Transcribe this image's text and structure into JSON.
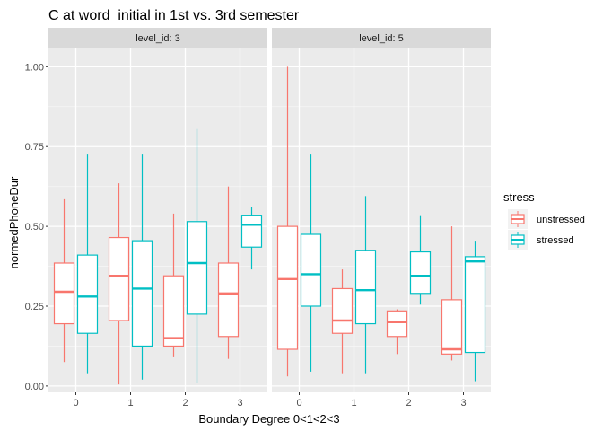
{
  "chart_data": {
    "type": "boxplot",
    "title": "C at word_initial in 1st vs. 3rd semester",
    "xlabel": "Boundary Degree 0<1<2<3",
    "ylabel": "normedPhoneDur",
    "categories": [
      "0",
      "1",
      "2",
      "3"
    ],
    "ylim": [
      -0.02,
      1.06
    ],
    "yticks": [
      0.0,
      0.25,
      0.5,
      0.75,
      1.0
    ],
    "ytick_labels": [
      "0.00",
      "0.25",
      "0.50",
      "0.75",
      "1.00"
    ],
    "grid": true,
    "legend": {
      "title": "stress",
      "position": "right",
      "entries": [
        {
          "name": "unstressed",
          "color": "#F8766D"
        },
        {
          "name": "stressed",
          "color": "#00BFC4"
        }
      ]
    },
    "panels": [
      {
        "label": "level_id: 3",
        "boxes": [
          {
            "category": "0",
            "series": "unstressed",
            "min": 0.075,
            "q1": 0.195,
            "median": 0.295,
            "q3": 0.385,
            "max": 0.585
          },
          {
            "category": "0",
            "series": "stressed",
            "min": 0.04,
            "q1": 0.165,
            "median": 0.28,
            "q3": 0.41,
            "max": 0.725
          },
          {
            "category": "1",
            "series": "unstressed",
            "min": 0.005,
            "q1": 0.205,
            "median": 0.345,
            "q3": 0.465,
            "max": 0.635
          },
          {
            "category": "1",
            "series": "stressed",
            "min": 0.02,
            "q1": 0.125,
            "median": 0.305,
            "q3": 0.455,
            "max": 0.725
          },
          {
            "category": "2",
            "series": "unstressed",
            "min": 0.09,
            "q1": 0.125,
            "median": 0.15,
            "q3": 0.345,
            "max": 0.54
          },
          {
            "category": "2",
            "series": "stressed",
            "min": 0.01,
            "q1": 0.225,
            "median": 0.385,
            "q3": 0.515,
            "max": 0.805
          },
          {
            "category": "3",
            "series": "unstressed",
            "min": 0.085,
            "q1": 0.155,
            "median": 0.29,
            "q3": 0.385,
            "max": 0.625
          },
          {
            "category": "3",
            "series": "stressed",
            "min": 0.365,
            "q1": 0.435,
            "median": 0.505,
            "q3": 0.535,
            "max": 0.56
          }
        ]
      },
      {
        "label": "level_id: 5",
        "boxes": [
          {
            "category": "0",
            "series": "unstressed",
            "min": 0.03,
            "q1": 0.115,
            "median": 0.335,
            "q3": 0.5,
            "max": 1.0
          },
          {
            "category": "0",
            "series": "stressed",
            "min": 0.045,
            "q1": 0.25,
            "median": 0.35,
            "q3": 0.475,
            "max": 0.725
          },
          {
            "category": "1",
            "series": "unstressed",
            "min": 0.04,
            "q1": 0.165,
            "median": 0.205,
            "q3": 0.305,
            "max": 0.365
          },
          {
            "category": "1",
            "series": "stressed",
            "min": 0.04,
            "q1": 0.195,
            "median": 0.3,
            "q3": 0.425,
            "max": 0.595
          },
          {
            "category": "2",
            "series": "unstressed",
            "min": 0.1,
            "q1": 0.155,
            "median": 0.2,
            "q3": 0.235,
            "max": 0.24
          },
          {
            "category": "2",
            "series": "stressed",
            "min": 0.255,
            "q1": 0.29,
            "median": 0.345,
            "q3": 0.42,
            "max": 0.535
          },
          {
            "category": "3",
            "series": "unstressed",
            "min": 0.08,
            "q1": 0.1,
            "median": 0.115,
            "q3": 0.27,
            "max": 0.5
          },
          {
            "category": "3",
            "series": "stressed",
            "min": 0.015,
            "q1": 0.105,
            "median": 0.39,
            "q3": 0.405,
            "max": 0.455
          }
        ]
      }
    ]
  }
}
